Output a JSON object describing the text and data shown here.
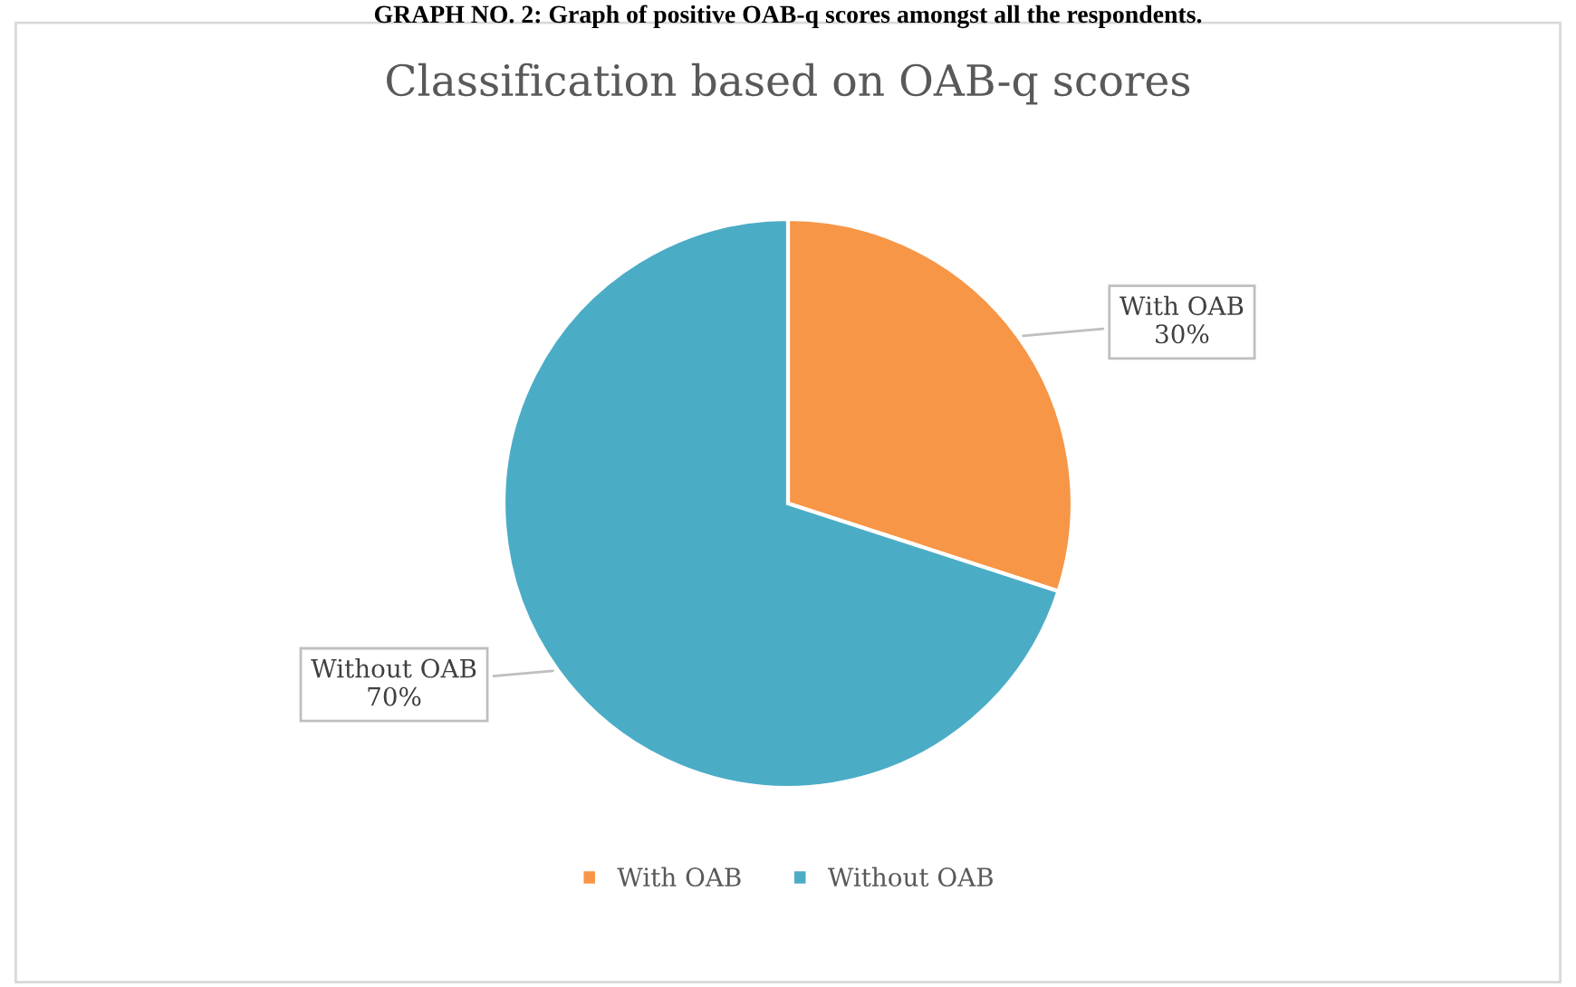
{
  "chart_data": {
    "type": "pie",
    "title": "Classification based on OAB-q scores",
    "annotations": [
      "GRAPH NO. 2: Graph of positive OAB-q scores amongst all the respondents."
    ],
    "categories": [
      "With OAB",
      "Without OAB"
    ],
    "values": [
      30,
      70
    ],
    "colors": [
      "#f79646",
      "#4bacc6"
    ],
    "value_labels": [
      "With OAB\n30%",
      "Without OAB\n70%"
    ],
    "legend": "bottom"
  }
}
